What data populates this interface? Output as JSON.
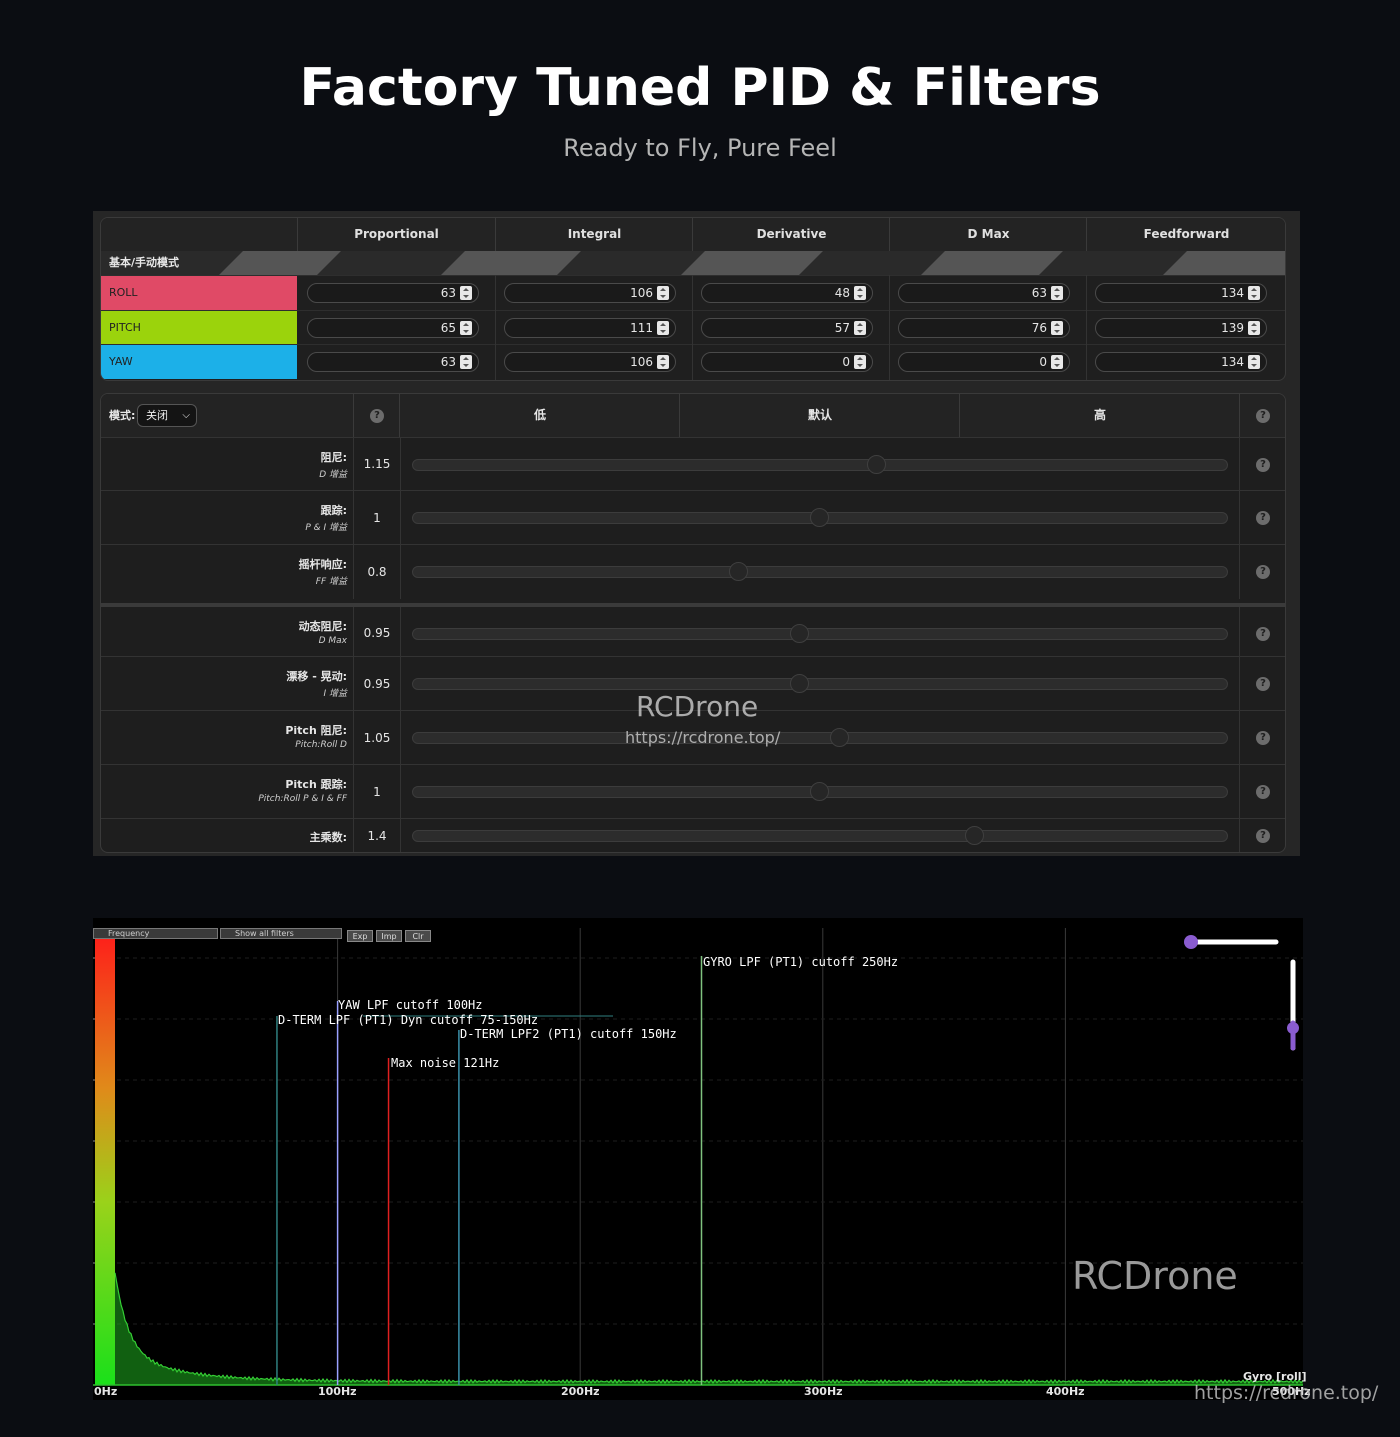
{
  "header": {
    "title": "Factory Tuned PID & Filters",
    "subtitle": "Ready to Fly, Pure Feel"
  },
  "pid_table": {
    "columns": [
      "Proportional",
      "Integral",
      "Derivative",
      "D Max",
      "Feedforward"
    ],
    "mode_label": "基本/手动模式",
    "rows": [
      {
        "axis": "ROLL",
        "color": "#e04a66",
        "values": [
          "63",
          "106",
          "48",
          "63",
          "134"
        ]
      },
      {
        "axis": "PITCH",
        "color": "#9bd30c",
        "values": [
          "65",
          "111",
          "57",
          "76",
          "139"
        ]
      },
      {
        "axis": "YAW",
        "color": "#1cb0e8",
        "values": [
          "63",
          "106",
          "0",
          "0",
          "134"
        ]
      }
    ]
  },
  "sliders": {
    "mode_label": "模式:",
    "mode_value": "关闭",
    "columns": [
      "低",
      "默认",
      "高"
    ],
    "help": "?",
    "rows": [
      {
        "label": "阻尼:",
        "sub": "D 增益",
        "value": "1.15",
        "position": 0.57
      },
      {
        "label": "跟踪:",
        "sub": "P & I 增益",
        "value": "1",
        "position": 0.5
      },
      {
        "label": "摇杆响应:",
        "sub": "FF 增益",
        "value": "0.8",
        "position": 0.4
      },
      {
        "label": "动态阻尼:",
        "sub": "D Max",
        "value": "0.95",
        "position": 0.475
      },
      {
        "label": "漂移 - 晃动:",
        "sub": "I 增益",
        "value": "0.95",
        "position": 0.475
      },
      {
        "label": "Pitch 阻尼:",
        "sub": "Pitch:Roll D",
        "value": "1.05",
        "position": 0.525
      },
      {
        "label": "Pitch 跟踪:",
        "sub": "Pitch:Roll P & I & FF",
        "value": "1",
        "position": 0.5
      },
      {
        "label": "主乘数:",
        "sub": "",
        "value": "1.4",
        "position": 0.69
      }
    ],
    "watermark": "RCDrone",
    "watermark_url": "https://rcdrone.top/"
  },
  "spectrum": {
    "controls": {
      "type_select": "Frequency",
      "filter_select": "Show all filters",
      "buttons": [
        "Exp",
        "Imp",
        "Clr"
      ]
    },
    "filters": [
      {
        "label": "GYRO LPF (PT1) cutoff 250Hz",
        "freq": 250,
        "color": "#7fc27f"
      },
      {
        "label": "YAW LPF cutoff 100Hz",
        "freq": 100,
        "color": "#9aa0ff"
      },
      {
        "label": "D-TERM LPF (PT1) Dyn cutoff 75-150Hz",
        "freq": 75,
        "color": "#2f7f7f"
      },
      {
        "label": "D-TERM LPF2 (PT1) cutoff 150Hz",
        "freq": 150,
        "color": "#3a8fa8"
      },
      {
        "label": "Max noise 121Hz",
        "freq": 121,
        "color": "#e02020"
      }
    ],
    "x_ticks": [
      "0Hz",
      "100Hz",
      "200Hz",
      "300Hz",
      "400Hz",
      "500Hz"
    ],
    "trace_label": "Gyro [roll]",
    "watermark": "RCDrone",
    "watermark_url": "https://rcdrone.top/"
  }
}
